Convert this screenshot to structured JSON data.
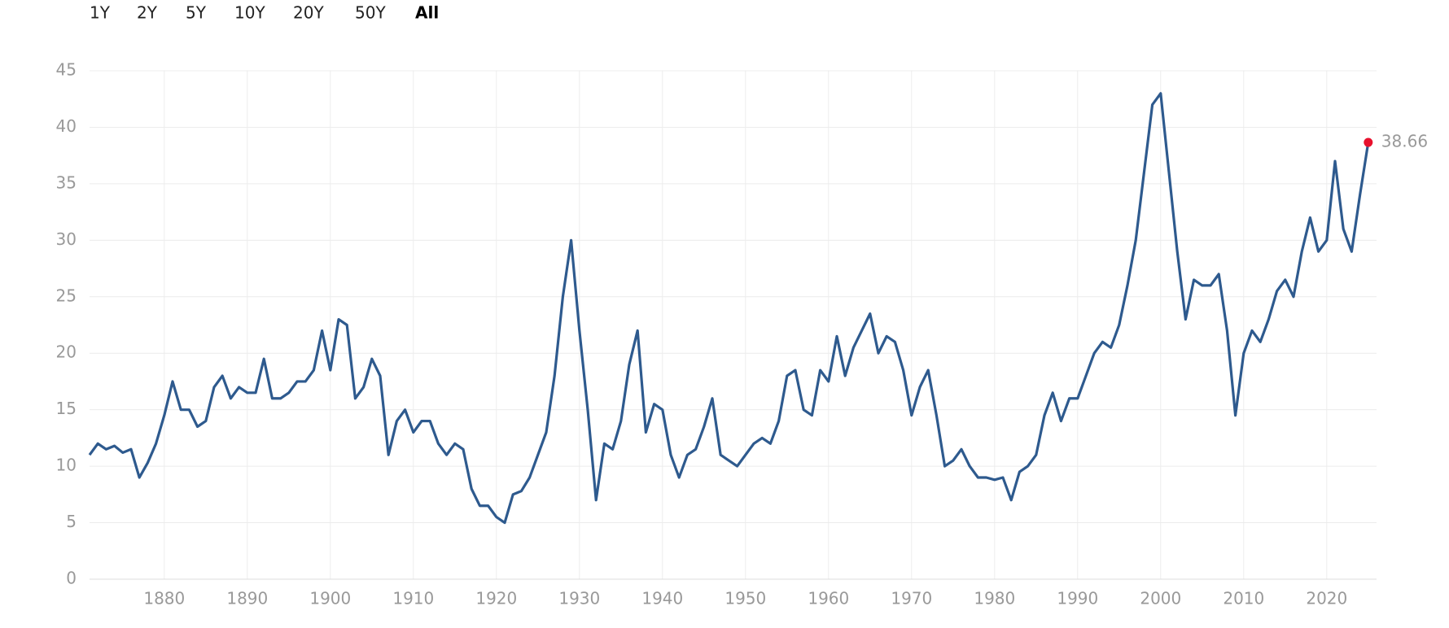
{
  "chart_data": {
    "type": "line",
    "range_buttons": [
      "1Y",
      "2Y",
      "5Y",
      "10Y",
      "20Y",
      "50Y",
      "All"
    ],
    "active_range": 6,
    "x": [
      1871,
      1872,
      1873,
      1874,
      1875,
      1876,
      1877,
      1878,
      1879,
      1880,
      1881,
      1882,
      1883,
      1884,
      1885,
      1886,
      1887,
      1888,
      1889,
      1890,
      1891,
      1892,
      1893,
      1894,
      1895,
      1896,
      1897,
      1898,
      1899,
      1900,
      1901,
      1902,
      1903,
      1904,
      1905,
      1906,
      1907,
      1908,
      1909,
      1910,
      1911,
      1912,
      1913,
      1914,
      1915,
      1916,
      1917,
      1918,
      1919,
      1920,
      1921,
      1922,
      1923,
      1924,
      1925,
      1926,
      1927,
      1928,
      1929,
      1930,
      1931,
      1932,
      1933,
      1934,
      1935,
      1936,
      1937,
      1938,
      1939,
      1940,
      1941,
      1942,
      1943,
      1944,
      1945,
      1946,
      1947,
      1948,
      1949,
      1950,
      1951,
      1952,
      1953,
      1954,
      1955,
      1956,
      1957,
      1958,
      1959,
      1960,
      1961,
      1962,
      1963,
      1964,
      1965,
      1966,
      1967,
      1968,
      1969,
      1970,
      1971,
      1972,
      1973,
      1974,
      1975,
      1976,
      1977,
      1978,
      1979,
      1980,
      1981,
      1982,
      1983,
      1984,
      1985,
      1986,
      1987,
      1988,
      1989,
      1990,
      1991,
      1992,
      1993,
      1994,
      1995,
      1996,
      1997,
      1998,
      1999,
      2000,
      2001,
      2002,
      2003,
      2004,
      2005,
      2006,
      2007,
      2008,
      2009,
      2010,
      2011,
      2012,
      2013,
      2014,
      2015,
      2016,
      2017,
      2018,
      2019,
      2020,
      2021,
      2022,
      2023,
      2024,
      2025
    ],
    "series": [
      {
        "color": "#2e5a8e",
        "values": [
          11,
          12,
          11.5,
          11.8,
          11.2,
          11.5,
          9,
          10.3,
          12,
          14.5,
          17.5,
          15,
          15,
          13.5,
          14,
          17,
          18,
          16,
          17,
          16.5,
          16.5,
          19.5,
          16,
          16,
          16.5,
          17.5,
          17.5,
          18.5,
          22,
          18.5,
          23,
          22.5,
          16,
          17,
          19.5,
          18,
          11,
          14,
          15,
          13,
          14,
          14,
          12,
          11,
          12,
          11.5,
          8,
          6.5,
          6.5,
          5.5,
          5,
          7.5,
          7.8,
          9,
          11,
          13,
          18,
          25,
          30,
          22,
          15,
          7,
          12,
          11.5,
          14,
          19,
          22,
          13,
          15.5,
          15,
          11,
          9,
          11,
          11.5,
          13.5,
          16,
          11,
          10.5,
          10,
          11,
          12,
          12.5,
          12,
          14,
          18,
          18.5,
          15,
          14.5,
          18.5,
          17.5,
          21.5,
          18,
          20.5,
          22,
          23.5,
          20,
          21.5,
          21,
          18.5,
          14.5,
          17,
          18.5,
          14.5,
          10,
          10.5,
          11.5,
          10,
          9,
          9,
          8.8,
          9,
          7,
          9.5,
          10,
          11,
          14.5,
          16.5,
          14,
          16,
          16,
          18,
          20,
          21,
          20.5,
          22.5,
          26,
          30,
          36,
          42,
          43,
          36,
          29,
          23,
          26.5,
          26,
          26,
          27,
          22,
          14.5,
          20,
          22,
          21,
          23,
          25.5,
          26.5,
          25,
          29,
          32,
          29,
          30,
          37,
          31,
          29,
          34,
          38.66
        ]
      }
    ],
    "xlim": [
      1871,
      2026
    ],
    "ylim": [
      0,
      45
    ],
    "xticks": [
      1880,
      1890,
      1900,
      1910,
      1920,
      1930,
      1940,
      1950,
      1960,
      1970,
      1980,
      1990,
      2000,
      2010,
      2020
    ],
    "yticks": [
      0,
      5,
      10,
      15,
      20,
      25,
      30,
      35,
      40,
      45
    ],
    "grid": true,
    "last_point_color": "#e8112d"
  }
}
